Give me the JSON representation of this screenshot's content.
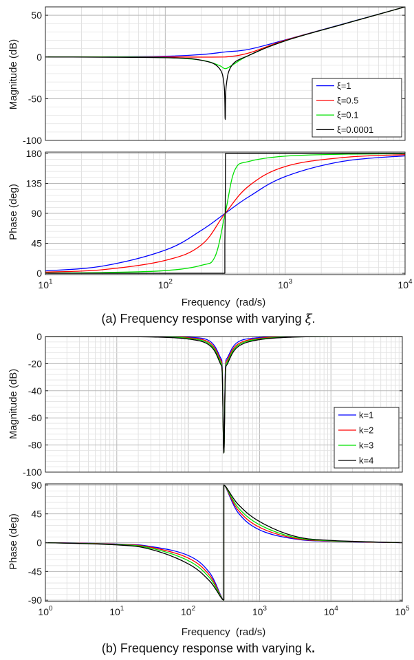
{
  "chart_data": [
    {
      "type": "line",
      "id": "a-mag",
      "xlabel": "",
      "ylabel": "Magnitude (dB)",
      "xscale": "log",
      "xlim": [
        10,
        10000
      ],
      "ylim": [
        -100,
        60
      ],
      "yticks": [
        -100,
        -50,
        0,
        50
      ],
      "ytick_labels": [
        "-100",
        "-50",
        "0",
        "50"
      ],
      "grid": true,
      "legend": "bottom-right",
      "series": [
        {
          "name": "ξ=1",
          "color": "#0000ff",
          "x": [
            10,
            30,
            100,
            200,
            316,
            500,
            1000,
            3000,
            10000
          ],
          "y": [
            0.0,
            0.1,
            0.9,
            2.9,
            6.0,
            9.2,
            20.4,
            39.3,
            60.0
          ]
        },
        {
          "name": "ξ=0.5",
          "color": "#ff0000",
          "x": [
            10,
            30,
            100,
            200,
            316,
            500,
            1000,
            3000,
            10000
          ],
          "y": [
            0.0,
            0.0,
            0.0,
            -0.2,
            0.0,
            4.8,
            20.0,
            39.0,
            60.0
          ]
        },
        {
          "name": "ξ=0.1",
          "color": "#00e000",
          "x": [
            10,
            30,
            100,
            200,
            280,
            316,
            360,
            500,
            1000,
            3000,
            10000
          ],
          "y": [
            0.0,
            0.0,
            -0.8,
            -3.8,
            -10.0,
            -14.0,
            -10.0,
            2.0,
            19.3,
            39.0,
            60.0
          ]
        },
        {
          "name": "ξ=0.0001",
          "color": "#000000",
          "x": [
            10,
            100,
            200,
            280,
            310,
            316,
            322,
            360,
            500,
            1000,
            3000,
            10000
          ],
          "y": [
            0.0,
            -0.9,
            -4.0,
            -13.0,
            -35.0,
            -75.0,
            -35.0,
            -10.0,
            2.0,
            19.3,
            39.0,
            60.0
          ]
        }
      ]
    },
    {
      "type": "line",
      "id": "a-phase",
      "xlabel": "Frequency  (rad/s)",
      "ylabel": "Phase (deg)",
      "xscale": "log",
      "xlim": [
        10,
        10000
      ],
      "ylim": [
        -2,
        182
      ],
      "xticks": [
        10,
        100,
        1000,
        10000
      ],
      "xtick_labels": [
        {
          "base": "10",
          "exp": "1"
        },
        {
          "base": "10",
          "exp": "2"
        },
        {
          "base": "10",
          "exp": "3"
        },
        {
          "base": "10",
          "exp": "4"
        }
      ],
      "yticks": [
        0,
        45,
        90,
        135,
        180
      ],
      "ytick_labels": [
        "0",
        "45",
        "90",
        "135",
        "180"
      ],
      "grid": true,
      "series": [
        {
          "name": "ξ=1",
          "color": "#0000ff",
          "x": [
            10,
            30,
            100,
            200,
            316,
            500,
            1000,
            3000,
            10000
          ],
          "y": [
            3.6,
            10.8,
            34.8,
            64.5,
            90.0,
            115.2,
            145.2,
            168.0,
            176.4
          ]
        },
        {
          "name": "ξ=0.5",
          "color": "#ff0000",
          "x": [
            10,
            30,
            100,
            200,
            316,
            500,
            1000,
            3000,
            10000
          ],
          "y": [
            1.8,
            5.4,
            19.3,
            42.6,
            90.0,
            131.4,
            160.3,
            173.8,
            178.2
          ]
        },
        {
          "name": "ξ=0.1",
          "color": "#00e000",
          "x": [
            10,
            30,
            100,
            200,
            260,
            316,
            380,
            500,
            1000,
            3000,
            10000
          ],
          "y": [
            0.4,
            1.1,
            4.0,
            12.0,
            25.0,
            90.0,
            155.0,
            168.0,
            175.9,
            178.8,
            179.6
          ]
        },
        {
          "name": "ξ=0.0001",
          "color": "#000000",
          "x": [
            10,
            314,
            314,
            316,
            318,
            10000
          ],
          "y": [
            0.0,
            0.0,
            45.0,
            90.0,
            180.0,
            180.0
          ]
        }
      ]
    },
    {
      "type": "line",
      "id": "b-mag",
      "xlabel": "",
      "ylabel": "Magnitude (dB)",
      "xscale": "log",
      "xlim": [
        1,
        100000
      ],
      "ylim": [
        -100,
        0
      ],
      "yticks": [
        -100,
        -80,
        -60,
        -40,
        -20,
        0
      ],
      "ytick_labels": [
        "-100",
        "-80",
        "-60",
        "-40",
        "-20",
        "0"
      ],
      "grid": true,
      "legend": "bottom-right",
      "series": [
        {
          "name": "k=1",
          "color": "#0000ff",
          "x": [
            1,
            10,
            30,
            100,
            200,
            280,
            300,
            316,
            333,
            360,
            500,
            1000,
            3000,
            10000,
            100000
          ],
          "y": [
            0.0,
            0.0,
            -0.1,
            -0.5,
            -3.3,
            -15.0,
            -22.0,
            -86.0,
            -22.0,
            -15.0,
            -4.0,
            -0.8,
            -0.1,
            0.0,
            0.0
          ]
        },
        {
          "name": "k=2",
          "color": "#ff0000",
          "x": [
            1,
            10,
            30,
            100,
            200,
            280,
            300,
            316,
            333,
            360,
            500,
            1000,
            3000,
            10000,
            100000
          ],
          "y": [
            0.0,
            0.0,
            -0.1,
            -0.9,
            -4.5,
            -16.5,
            -24.0,
            -86.0,
            -24.0,
            -16.5,
            -5.5,
            -1.3,
            -0.2,
            0.0,
            0.0
          ]
        },
        {
          "name": "k=3",
          "color": "#00e000",
          "x": [
            1,
            10,
            30,
            100,
            200,
            280,
            300,
            316,
            333,
            360,
            500,
            1000,
            3000,
            10000,
            100000
          ],
          "y": [
            0.0,
            0.0,
            -0.2,
            -1.3,
            -5.5,
            -18.0,
            -25.5,
            -86.0,
            -25.5,
            -18.0,
            -6.5,
            -1.8,
            -0.3,
            0.0,
            0.0
          ]
        },
        {
          "name": "k=4",
          "color": "#000000",
          "x": [
            1,
            10,
            30,
            100,
            200,
            280,
            300,
            316,
            333,
            360,
            500,
            1000,
            3000,
            10000,
            100000
          ],
          "y": [
            0.0,
            -0.1,
            -0.3,
            -1.8,
            -6.5,
            -19.5,
            -27.0,
            -86.0,
            -27.0,
            -19.5,
            -7.5,
            -2.3,
            -0.4,
            0.0,
            0.0
          ]
        }
      ]
    },
    {
      "type": "line",
      "id": "b-phase",
      "xlabel": "Frequency  (rad/s)",
      "ylabel": "Phase (deg)",
      "xscale": "log",
      "xlim": [
        1,
        100000
      ],
      "ylim": [
        -92,
        92
      ],
      "xticks": [
        1,
        10,
        100,
        1000,
        10000,
        100000
      ],
      "xtick_labels": [
        {
          "base": "10",
          "exp": "0"
        },
        {
          "base": "10",
          "exp": "1"
        },
        {
          "base": "10",
          "exp": "2"
        },
        {
          "base": "10",
          "exp": "3"
        },
        {
          "base": "10",
          "exp": "4"
        },
        {
          "base": "10",
          "exp": "5"
        }
      ],
      "yticks": [
        -90,
        -45,
        0,
        45,
        90
      ],
      "ytick_labels": [
        "-90",
        "-45",
        "0",
        "45",
        "90"
      ],
      "grid": true,
      "series": [
        {
          "name": "k=1",
          "color": "#0000ff",
          "x": [
            1,
            10,
            30,
            100,
            200,
            316,
            316,
            500,
            1000,
            3000,
            10000,
            100000
          ],
          "y": [
            0.0,
            -2.0,
            -6.0,
            -20.0,
            -47.0,
            -90.0,
            90.0,
            47.0,
            20.0,
            6.0,
            2.0,
            0.0
          ]
        },
        {
          "name": "k=2",
          "color": "#ff0000",
          "x": [
            1,
            10,
            30,
            100,
            200,
            316,
            316,
            500,
            1000,
            3000,
            10000,
            100000
          ],
          "y": [
            0.0,
            -2.4,
            -7.2,
            -24.0,
            -51.0,
            -90.0,
            90.0,
            51.0,
            24.0,
            7.2,
            2.4,
            0.0
          ]
        },
        {
          "name": "k=3",
          "color": "#00e000",
          "x": [
            1,
            10,
            30,
            100,
            200,
            316,
            316,
            500,
            1000,
            3000,
            10000,
            100000
          ],
          "y": [
            0.0,
            -2.9,
            -8.6,
            -28.0,
            -55.0,
            -90.0,
            90.0,
            55.0,
            28.0,
            8.6,
            2.9,
            0.0
          ]
        },
        {
          "name": "k=4",
          "color": "#000000",
          "x": [
            1,
            10,
            30,
            100,
            200,
            316,
            316,
            500,
            1000,
            3000,
            10000,
            100000
          ],
          "y": [
            0.0,
            -3.5,
            -10.5,
            -33.0,
            -60.0,
            -90.0,
            90.0,
            60.0,
            33.0,
            10.5,
            3.5,
            0.0
          ]
        }
      ]
    }
  ],
  "captions": {
    "a": "(a) Frequency response with varying",
    "a_symbol": "ξ",
    "a_end": ".",
    "b": "(b) Frequency response with varying k",
    "b_end": "."
  }
}
